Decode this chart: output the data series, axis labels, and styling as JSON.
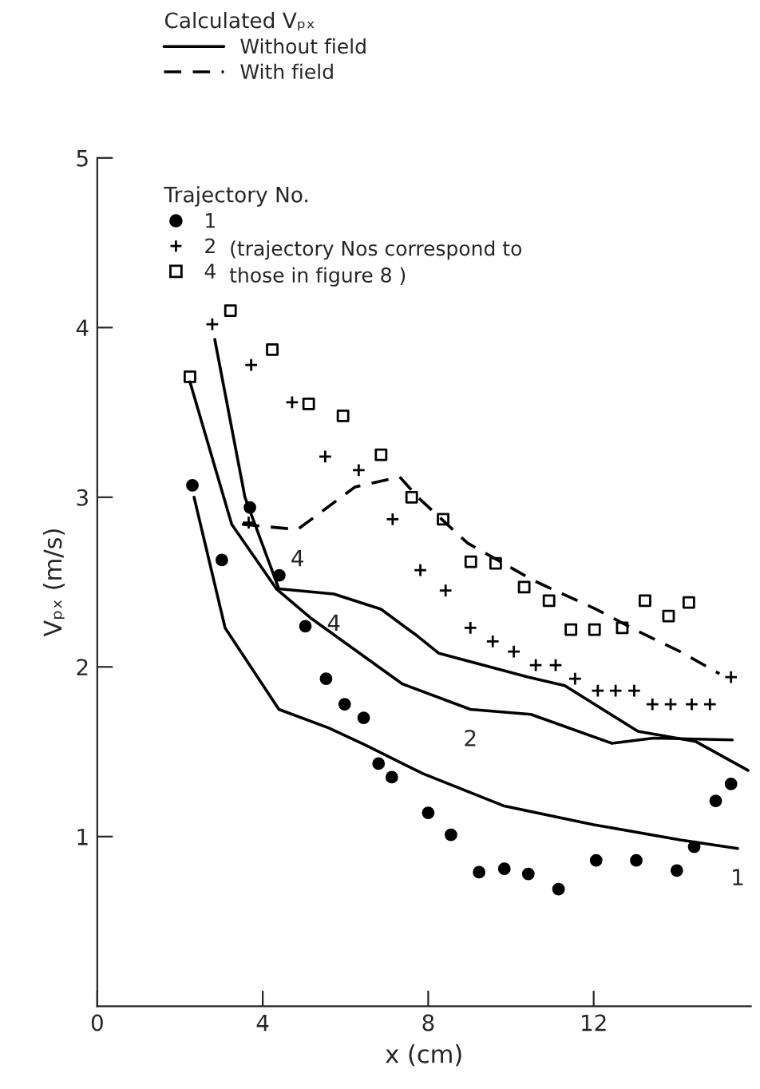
{
  "chart_data": {
    "type": "line",
    "xlabel": "x (cm)",
    "ylabel": "Vₚₓ (m/s)",
    "xlim": [
      0,
      15.8
    ],
    "ylim": [
      0,
      5
    ],
    "xticks": [
      0,
      4,
      8,
      12
    ],
    "yticks": [
      1,
      2,
      3,
      4,
      5
    ],
    "grid": false,
    "legend": "top",
    "legend_title": "Calculated Vₚₓ",
    "series": [
      {
        "name": "Without field",
        "line_style": "solid",
        "marker": "none",
        "color": "#000000",
        "x": [
          2.34,
          3.09,
          4.39,
          5.6,
          6.48,
          7.88,
          9.84,
          12.0,
          14.09,
          15.48
        ],
        "values": [
          3.0,
          2.23,
          1.75,
          1.64,
          1.54,
          1.37,
          1.18,
          1.07,
          0.98,
          0.93
        ]
      },
      {
        "line_style": "solid",
        "marker": "none",
        "color": "#000000",
        "x": [
          2.24,
          3.25,
          4.33,
          5.15,
          7.37,
          9.02,
          10.48,
          12.44,
          13.45,
          15.35
        ],
        "values": [
          3.68,
          2.84,
          2.46,
          2.29,
          1.9,
          1.75,
          1.72,
          1.55,
          1.58,
          1.57
        ]
      },
      {
        "line_style": "solid",
        "marker": "none",
        "color": "#000000",
        "x": [
          2.84,
          3.57,
          4.39,
          5.72,
          6.86,
          7.75,
          8.26,
          10.41,
          11.3,
          13.07,
          14.47,
          15.73
        ],
        "values": [
          3.93,
          3.0,
          2.46,
          2.43,
          2.34,
          2.18,
          2.08,
          1.94,
          1.89,
          1.62,
          1.56,
          1.39
        ]
      },
      {
        "name": "With field",
        "line_style": "dashed",
        "marker": "none",
        "color": "#000000",
        "x": [
          3.5,
          4.84,
          6.23,
          7.31,
          7.75,
          8.95,
          10.54,
          12.06,
          13.07,
          14.09,
          15.04
        ],
        "values": [
          2.84,
          2.81,
          3.06,
          3.12,
          3.0,
          2.73,
          2.51,
          2.34,
          2.21,
          2.09,
          1.96
        ]
      },
      {
        "name": "1",
        "type": "scatter",
        "marker": "circle",
        "color": "#000000",
        "x": [
          2.3,
          3.01,
          3.69,
          4.4,
          5.03,
          5.53,
          5.98,
          6.44,
          6.8,
          7.12,
          8.0,
          8.55,
          9.23,
          9.84,
          10.42,
          11.15,
          12.06,
          13.03,
          14.01,
          14.43,
          14.95,
          15.32
        ],
        "values": [
          3.07,
          2.63,
          2.94,
          2.54,
          2.24,
          1.93,
          1.78,
          1.7,
          1.43,
          1.35,
          1.14,
          1.01,
          0.79,
          0.81,
          0.78,
          0.69,
          0.86,
          0.86,
          0.8,
          0.94,
          1.21,
          1.31
        ]
      },
      {
        "name": "2",
        "type": "scatter",
        "marker": "cross",
        "color": "#000000",
        "x": [
          2.78,
          3.72,
          4.71,
          5.51,
          6.32,
          3.66,
          7.14,
          7.81,
          8.42,
          9.02,
          9.56,
          10.07,
          10.6,
          11.08,
          11.55,
          12.1,
          12.53,
          12.98,
          13.42,
          13.86,
          14.37,
          14.81,
          15.32
        ],
        "values": [
          4.02,
          3.78,
          3.56,
          3.24,
          3.16,
          2.85,
          2.87,
          2.57,
          2.45,
          2.23,
          2.15,
          2.09,
          2.01,
          2.01,
          1.93,
          1.86,
          1.86,
          1.86,
          1.78,
          1.78,
          1.78,
          1.78,
          1.94
        ]
      },
      {
        "name": "4",
        "type": "scatter",
        "marker": "square",
        "color": "#000000",
        "x": [
          3.22,
          2.24,
          4.23,
          5.11,
          5.94,
          6.86,
          7.6,
          8.36,
          9.03,
          9.63,
          10.32,
          10.92,
          11.45,
          12.02,
          12.69,
          13.24,
          13.81,
          14.3
        ],
        "values": [
          4.1,
          3.71,
          3.87,
          3.55,
          3.48,
          3.25,
          3.0,
          2.87,
          2.62,
          2.61,
          2.47,
          2.39,
          2.22,
          2.22,
          2.23,
          2.39,
          2.3,
          2.38
        ]
      }
    ],
    "annotations": [
      "Trajectory No.",
      "(trajectory Nos correspond to",
      "those in figure 8 )",
      {
        "text": "1",
        "x": 15.48,
        "y": 0.93
      },
      {
        "text": "2",
        "x": 9.02,
        "y": 1.75
      },
      {
        "text": "4",
        "x": 5.72,
        "y": 2.43
      },
      {
        "text": "4",
        "x": 4.84,
        "y": 2.81
      }
    ]
  }
}
